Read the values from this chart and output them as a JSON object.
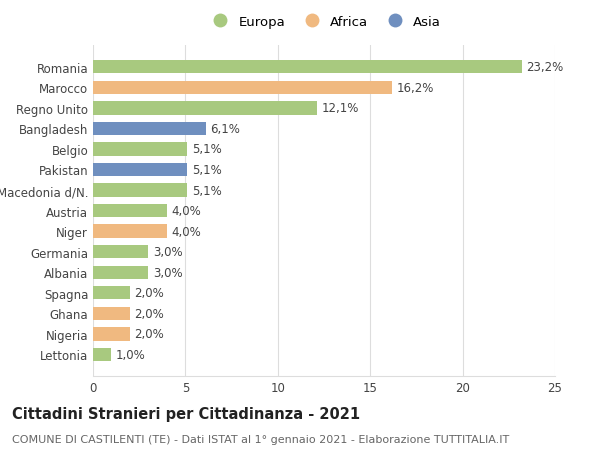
{
  "categories": [
    "Lettonia",
    "Nigeria",
    "Ghana",
    "Spagna",
    "Albania",
    "Germania",
    "Niger",
    "Austria",
    "Macedonia d/N.",
    "Pakistan",
    "Belgio",
    "Bangladesh",
    "Regno Unito",
    "Marocco",
    "Romania"
  ],
  "values": [
    1.0,
    2.0,
    2.0,
    2.0,
    3.0,
    3.0,
    4.0,
    4.0,
    5.1,
    5.1,
    5.1,
    6.1,
    12.1,
    16.2,
    23.2
  ],
  "continents": [
    "Europa",
    "Africa",
    "Africa",
    "Europa",
    "Europa",
    "Europa",
    "Africa",
    "Europa",
    "Europa",
    "Asia",
    "Europa",
    "Asia",
    "Europa",
    "Africa",
    "Europa"
  ],
  "labels": [
    "1,0%",
    "2,0%",
    "2,0%",
    "2,0%",
    "3,0%",
    "3,0%",
    "4,0%",
    "4,0%",
    "5,1%",
    "5,1%",
    "5,1%",
    "6,1%",
    "12,1%",
    "16,2%",
    "23,2%"
  ],
  "colors": {
    "Europa": "#a8c97f",
    "Africa": "#f0b980",
    "Asia": "#6f8fbf"
  },
  "title": "Cittadini Stranieri per Cittadinanza - 2021",
  "subtitle": "COMUNE DI CASTILENTI (TE) - Dati ISTAT al 1° gennaio 2021 - Elaborazione TUTTITALIA.IT",
  "xlim": [
    0,
    25
  ],
  "xticks": [
    0,
    5,
    10,
    15,
    20,
    25
  ],
  "background_color": "#ffffff",
  "grid_color": "#dddddd",
  "bar_height": 0.65,
  "label_fontsize": 8.5,
  "tick_fontsize": 8.5,
  "title_fontsize": 10.5,
  "subtitle_fontsize": 8.0,
  "legend_fontsize": 9.5
}
